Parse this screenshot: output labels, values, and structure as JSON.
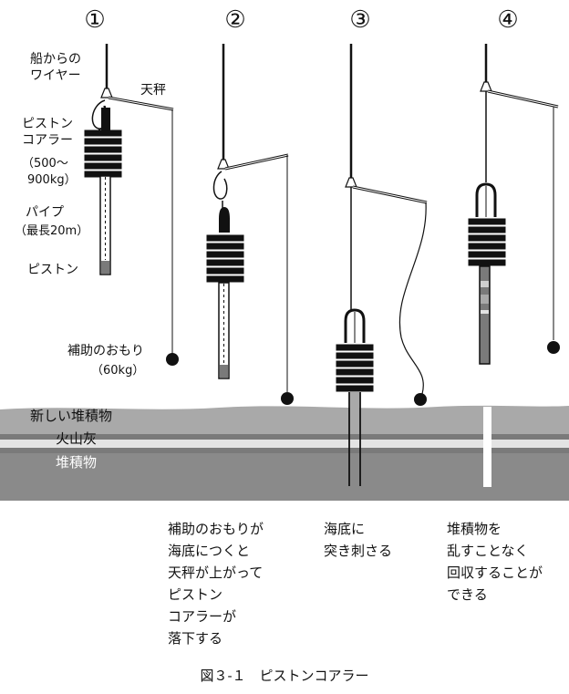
{
  "steps": [
    "①",
    "②",
    "③",
    "④"
  ],
  "labels": {
    "wire": [
      "船からの",
      "ワイヤー"
    ],
    "balance": "天秤",
    "corer": [
      "ピストン",
      "コアラー",
      "（500～",
      "900kg）"
    ],
    "pipe": [
      "パイプ",
      "（最長20m）"
    ],
    "piston": "ピストン",
    "weight": [
      "補助のおもり",
      "（60kg）"
    ]
  },
  "layers": {
    "new_sediment": "新しい堆積物",
    "ash": "火山灰",
    "sediment": "堆積物"
  },
  "captions": {
    "step2": [
      "補助のおもりが",
      "海底につくと",
      "天秤が上がって",
      "ピストン",
      "コアラーが",
      "落下する"
    ],
    "step3": [
      "海底に",
      "突き刺さる"
    ],
    "step4": [
      "堆積物を",
      "乱すことなく",
      "回収することが",
      "できる"
    ]
  },
  "figure_title": "図３-１　ピストンコアラー",
  "colors": {
    "ink": "#111111",
    "new_sediment": "#a9a9a9",
    "ash": "#e3e3e3",
    "sediment": "#8a8a8a",
    "band": "#7a7a7a"
  }
}
